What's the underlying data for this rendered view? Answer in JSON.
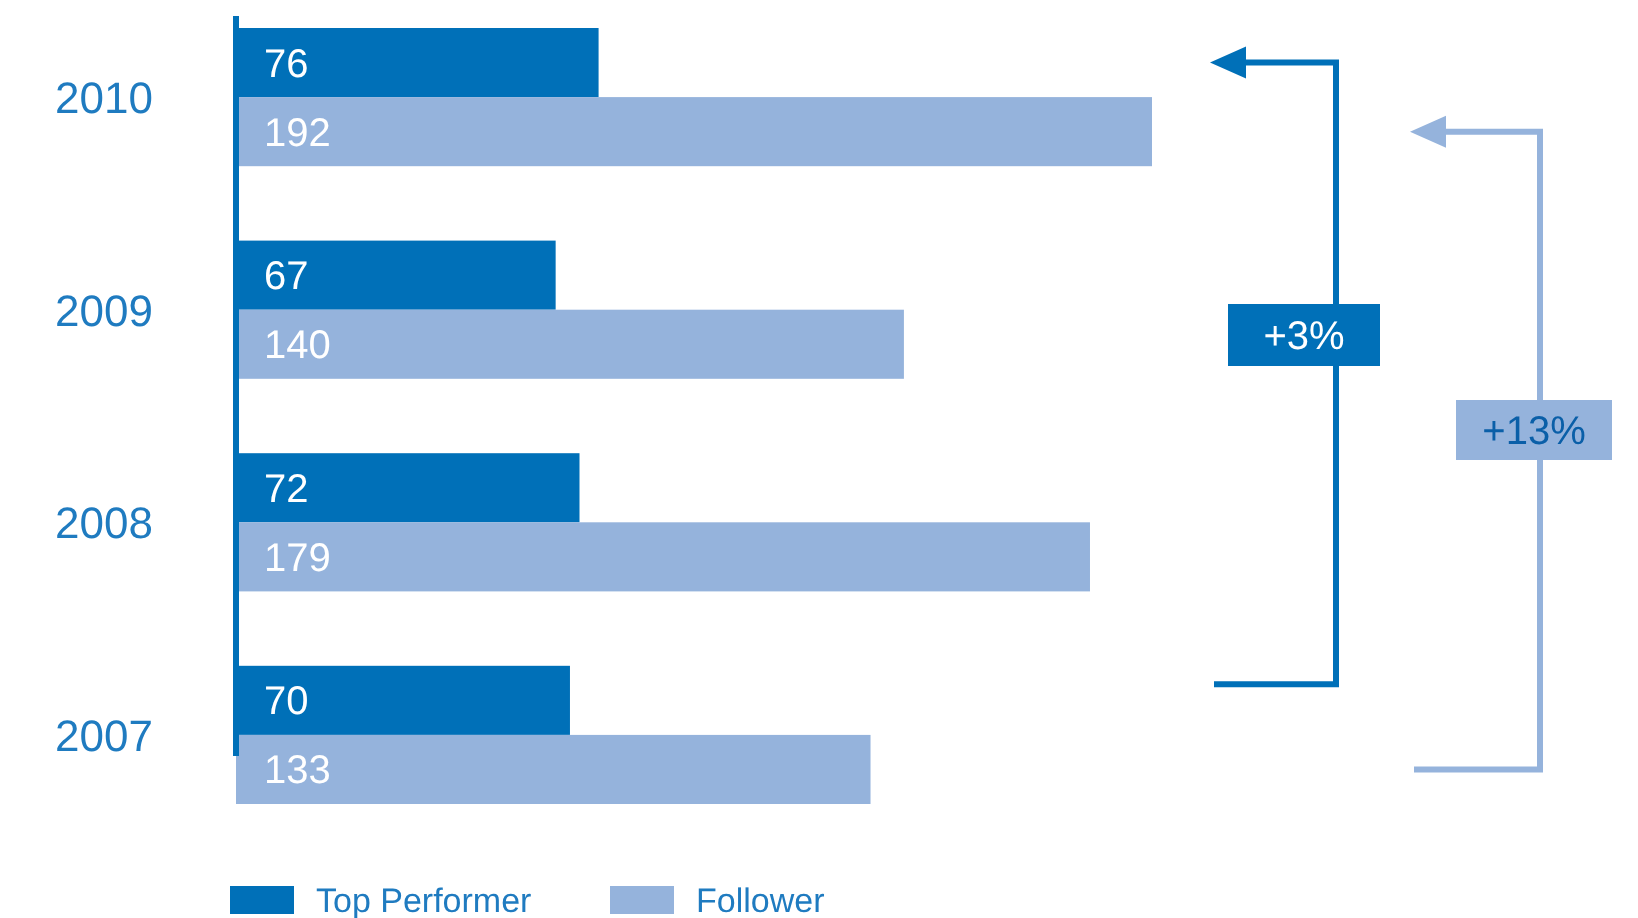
{
  "chart_data": {
    "type": "bar",
    "orientation": "horizontal",
    "categories": [
      "2010",
      "2009",
      "2008",
      "2007"
    ],
    "series": [
      {
        "name": "Top Performer",
        "color": "#0070b8",
        "values": [
          76,
          67,
          72,
          70
        ]
      },
      {
        "name": "Follower",
        "color": "#95b3dc",
        "values": [
          192,
          140,
          179,
          133
        ]
      }
    ],
    "data_labels": true,
    "legend": "bottom",
    "annotations": [
      "+3%",
      "+13%"
    ]
  }
}
